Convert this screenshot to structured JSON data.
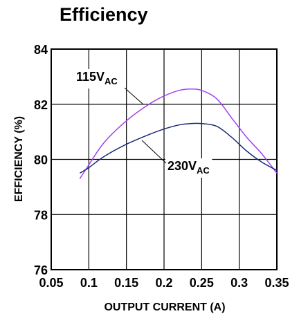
{
  "chart_data": {
    "type": "line",
    "title": "Efficiency",
    "xlabel": "OUTPUT CURRENT (A)",
    "ylabel": "EFFICIENCY (%)",
    "xlim": [
      0.05,
      0.35
    ],
    "ylim": [
      76,
      84
    ],
    "x_ticks": [
      0.05,
      0.1,
      0.15,
      0.2,
      0.25,
      0.3,
      0.35
    ],
    "x_tick_labels": [
      "0.05",
      "0.1",
      "0.15",
      "0.2",
      "0.25",
      "0.3",
      "0.35"
    ],
    "y_ticks": [
      76,
      78,
      80,
      82,
      84
    ],
    "y_tick_labels": [
      "76",
      "78",
      "80",
      "82",
      "84"
    ],
    "grid": true,
    "legend": "none",
    "series": [
      {
        "name": "115VAC",
        "label_main": "115V",
        "label_sub": "AC",
        "color": "#a040f0",
        "x": [
          0.088,
          0.1,
          0.12,
          0.15,
          0.18,
          0.2,
          0.22,
          0.235,
          0.25,
          0.27,
          0.29,
          0.31,
          0.33,
          0.35
        ],
        "y": [
          79.3,
          79.8,
          80.6,
          81.4,
          82.0,
          82.3,
          82.5,
          82.55,
          82.5,
          82.2,
          81.5,
          80.8,
          80.2,
          79.5
        ]
      },
      {
        "name": "230VAC",
        "label_main": "230V",
        "label_sub": "AC",
        "color": "#1a2a78",
        "x": [
          0.088,
          0.1,
          0.12,
          0.15,
          0.18,
          0.2,
          0.22,
          0.235,
          0.25,
          0.27,
          0.29,
          0.31,
          0.33,
          0.35
        ],
        "y": [
          79.5,
          79.7,
          80.1,
          80.55,
          80.9,
          81.1,
          81.25,
          81.3,
          81.3,
          81.2,
          80.8,
          80.3,
          79.9,
          79.6
        ]
      }
    ]
  }
}
